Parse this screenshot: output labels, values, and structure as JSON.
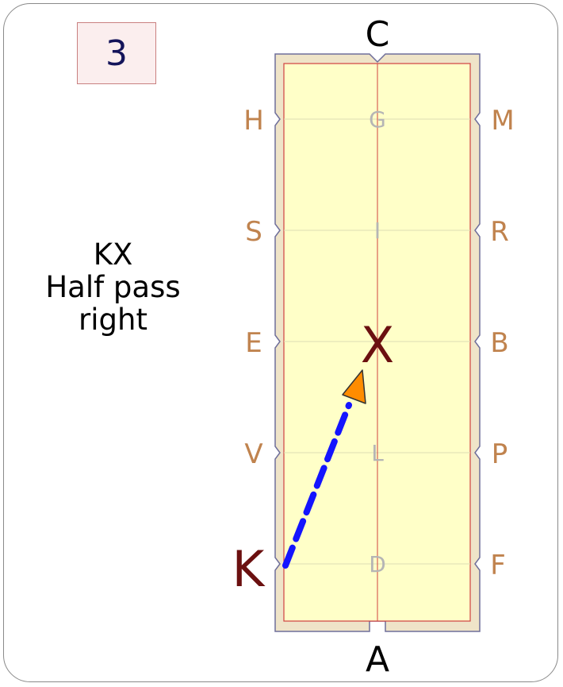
{
  "step": {
    "number": "3"
  },
  "movement": {
    "line1": "KX",
    "line2": "Half pass",
    "line3": "right"
  },
  "arena": {
    "letters": {
      "top": "C",
      "bottom": "A",
      "left": [
        "H",
        "S",
        "E",
        "V",
        "K"
      ],
      "right": [
        "M",
        "R",
        "B",
        "P",
        "F"
      ],
      "center": [
        "G",
        "I",
        "X",
        "L",
        "D"
      ]
    }
  },
  "colors": {
    "outer_letters": "#c0834e",
    "center_letters": "#b5b5b5",
    "highlight_letters": "#6b1010",
    "path": "#1414ff",
    "arrow": "#ff8c00",
    "arena_fill": "#ffffc8",
    "arena_border": "#efe4c8"
  }
}
